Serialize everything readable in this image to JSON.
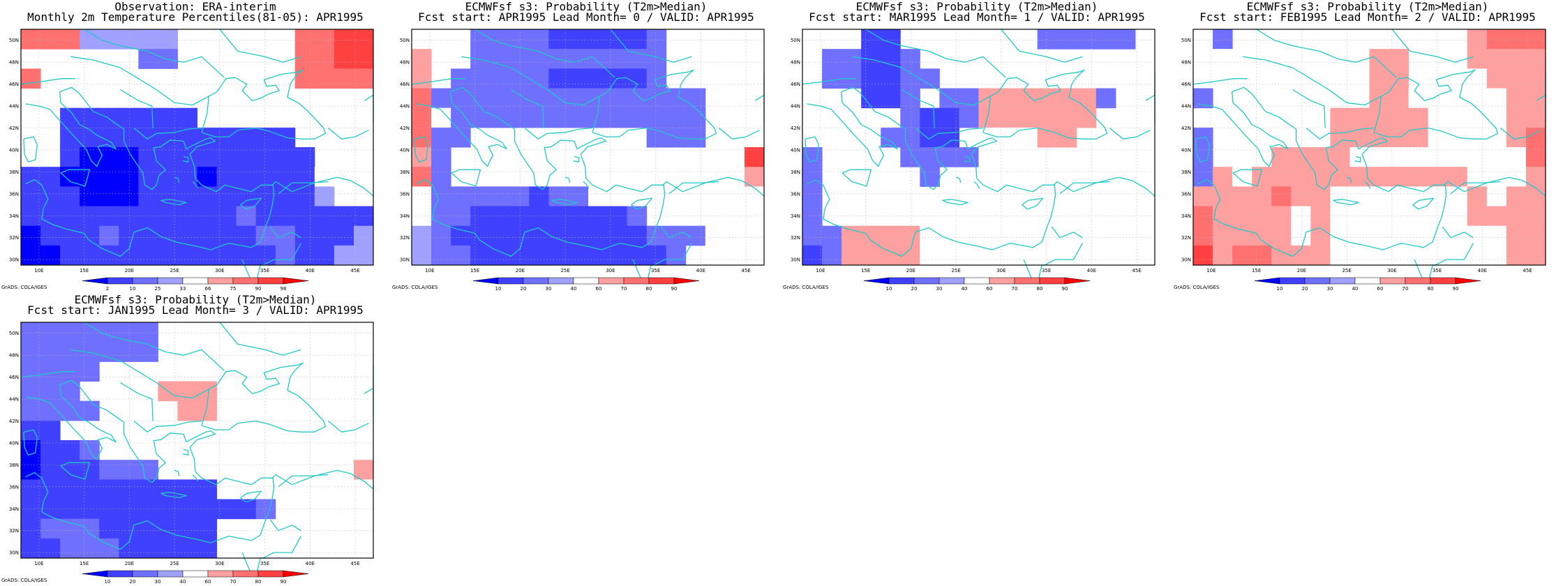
{
  "figure": {
    "credit": "GrADS: COLA/IGES",
    "lon_labels": [
      "10E",
      "15E",
      "20E",
      "25E",
      "30E",
      "35E",
      "40E",
      "45E"
    ],
    "lat_labels": [
      "30N",
      "32N",
      "34N",
      "36N",
      "38N",
      "40N",
      "42N",
      "44N",
      "46N",
      "48N",
      "50N"
    ],
    "palette": [
      "#0000ff",
      "#4040ff",
      "#7070ff",
      "#a0a0ff",
      "#ffffff",
      "#ffa0a0",
      "#ff7070",
      "#ff4040",
      "#ff0000"
    ],
    "coast_color": "#20c8c8",
    "grid_lines": "dotted"
  },
  "panels": [
    {
      "title1": "Observation: ERA-interim",
      "title2": "Monthly 2m Temperature Percentiles(81-05): APR1995",
      "colorbar_labels": [
        "2",
        "10",
        "25",
        "33",
        "66",
        "75",
        "90",
        "98"
      ],
      "grid": [
        "777444440000007788",
        "000000330000007788",
        "700000000000007777",
        "000000000000000000",
        "002222222000000000",
        "002222222222220000",
        "002111222222222000",
        "221111222122222500",
        "222111222222222400",
        "222222222223222222",
        "122232222222332224",
        "112222222222232244"
      ]
    },
    {
      "title1": "ECMWFsf s3: Probability (T2m>Median)",
      "title2": "Fcst start: APR1995  Lead Month= 0 / VALID: APR1995",
      "colorbar_labels": [
        "10",
        "20",
        "30",
        "40",
        "60",
        "70",
        "80",
        "90"
      ],
      "grid": [
        "500333322222300000",
        "605333333333300000",
        "603333322222300000",
        "733333333333333000",
        "753333333333333000",
        "733000000000333000",
        "630000000000000558",
        "730000000000000556",
        "533333233000000555",
        "533222222223000505",
        "432222222222333505",
        "433222222222230555"
      ]
    },
    {
      "title1": "ECMWFsf s3: Probability (T2m>Median)",
      "title2": "Fcst start: MAR1995  Lead Month= 1 / VALID: APR1995",
      "colorbar_labels": [
        "10",
        "20",
        "30",
        "40",
        "60",
        "70",
        "80",
        "90"
      ],
      "grid": [
        "000220000000333330",
        "033223000000000000",
        "033223300000000000",
        "000223033666666300",
        "000003223666666000",
        "000033220555660000",
        "300003333500000000",
        "300000300000000000",
        "300000000000000000",
        "300005555555000000",
        "336666555555000000",
        "236666555555555555"
      ]
    },
    {
      "title1": "ECMWFsf s3: Probability (T2m>Median)",
      "title2": "Fcst start: FEB1995  Lead Month= 2 / VALID: APR1995",
      "colorbar_labels": [
        "10",
        "20",
        "30",
        "40",
        "60",
        "70",
        "80",
        "90"
      ],
      "grid": [
        "030000000050006777",
        "050000000660006666",
        "000000005660005666",
        "300000055665555566",
        "000000566666555566",
        "300000566666555567",
        "300066665555555557",
        "365666666666665556",
        "666676655555556566",
        "766665655555556666",
        "766665650000005566",
        "867766650000005566"
      ]
    },
    {
      "title1": "ECMWFsf s3: Probability (T2m>Median)",
      "title2": "Fcst start: JAN1995  Lead Month= 3 / VALID: APR1995",
      "colorbar_labels": [
        "10",
        "20",
        "30",
        "40",
        "60",
        "70",
        "80",
        "90"
      ],
      "grid": [
        "333333300000000005",
        "333333305500000555",
        "333300000500000555",
        "333000066600000555",
        "333300006600000555",
        "220000000000000555",
        "122300000000000555",
        "122233300000000556",
        "222222222200000555",
        "222222222222300000",
        "233322222200000000",
        "223332222200000000"
      ]
    }
  ]
}
